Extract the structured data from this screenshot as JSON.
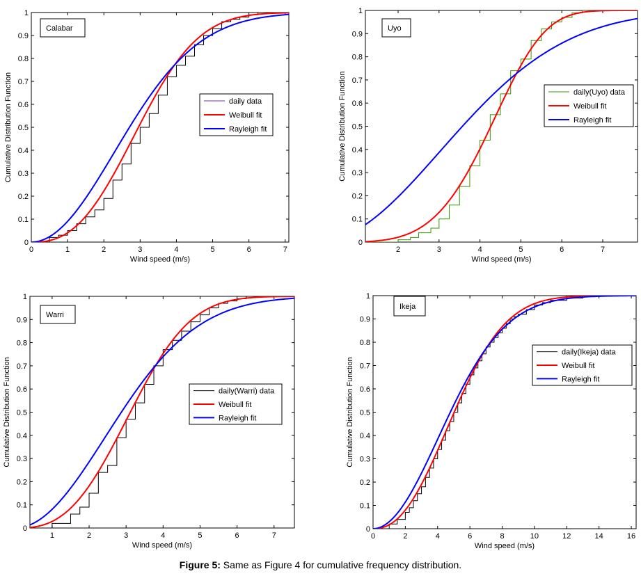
{
  "caption": {
    "label": "Figure 5:",
    "text": " Same as Figure 4 for cumulative frequency distribution."
  },
  "colors": {
    "weibull": "#ff0000",
    "rayleigh": "#0000ff",
    "axes": "#000000",
    "background": "#ffffff"
  },
  "chart_data": [
    {
      "type": "line",
      "title": "Calabar",
      "xlabel": "Wind speed (m/s)",
      "ylabel": "Cumulative Distribution Function",
      "xlim": [
        0,
        7.1
      ],
      "ylim": [
        0,
        1
      ],
      "xticks": [
        0,
        1,
        2,
        3,
        4,
        5,
        6,
        7
      ],
      "yticks": [
        0,
        0.1,
        0.2,
        0.3,
        0.4,
        0.5,
        0.6,
        0.7,
        0.8,
        0.9,
        1
      ],
      "grid": false,
      "legend_position": "center-right",
      "series": [
        {
          "name": "daily data",
          "kind": "step",
          "color": "#000000",
          "legend_color": "#7030a0",
          "x": [
            0,
            0.5,
            0.75,
            1.0,
            1.25,
            1.5,
            1.75,
            2.0,
            2.25,
            2.5,
            2.75,
            3.0,
            3.25,
            3.5,
            3.75,
            4.0,
            4.25,
            4.5,
            4.75,
            5.0,
            5.25,
            5.5,
            5.75,
            6.0,
            6.25,
            6.5,
            7.0
          ],
          "y": [
            0,
            0.02,
            0.03,
            0.05,
            0.08,
            0.11,
            0.14,
            0.19,
            0.27,
            0.34,
            0.43,
            0.5,
            0.56,
            0.64,
            0.72,
            0.77,
            0.81,
            0.86,
            0.9,
            0.93,
            0.96,
            0.97,
            0.98,
            0.99,
            1,
            1,
            1
          ]
        },
        {
          "name": "Weibull fit",
          "kind": "weibull",
          "k": 2.6,
          "c": 3.4,
          "color": "#ff0000"
        },
        {
          "name": "Rayleigh fit",
          "kind": "weibull",
          "k": 2.0,
          "c": 3.25,
          "color": "#0000ff"
        }
      ]
    },
    {
      "type": "line",
      "title": "Uyo",
      "xlabel": "Wind speed (m/s)",
      "ylabel": "Cumulative Distribution Function",
      "xlim": [
        1.2,
        7.85
      ],
      "ylim": [
        0,
        1
      ],
      "xticks": [
        2,
        3,
        4,
        5,
        6,
        7
      ],
      "yticks": [
        0,
        0.1,
        0.2,
        0.3,
        0.4,
        0.5,
        0.6,
        0.7,
        0.8,
        0.9,
        1
      ],
      "grid": false,
      "legend_position": "center-right",
      "series": [
        {
          "name": "daily(Uyo) data",
          "kind": "step",
          "color": "#339900",
          "x": [
            1.2,
            2.0,
            2.3,
            2.5,
            2.8,
            3.0,
            3.25,
            3.5,
            3.75,
            4.0,
            4.25,
            4.5,
            4.75,
            5.0,
            5.25,
            5.5,
            5.75,
            6.0,
            6.25,
            6.5,
            7.0
          ],
          "y": [
            0,
            0.01,
            0.02,
            0.04,
            0.06,
            0.1,
            0.16,
            0.24,
            0.33,
            0.44,
            0.55,
            0.64,
            0.74,
            0.79,
            0.87,
            0.92,
            0.95,
            0.97,
            0.99,
            1,
            1
          ]
        },
        {
          "name": "Weibull fit",
          "kind": "weibull",
          "k": 4.6,
          "c": 4.62,
          "color": "#ff0000"
        },
        {
          "name": "Rayleigh fit",
          "kind": "weibull",
          "k": 2.0,
          "c": 4.29,
          "color": "#0000ff"
        }
      ]
    },
    {
      "type": "line",
      "title": "Warri",
      "xlabel": "Wind speed (m/s)",
      "ylabel": "Cumulative Distribution Function",
      "xlim": [
        0.4,
        7.55
      ],
      "ylim": [
        0,
        1
      ],
      "xticks": [
        1,
        2,
        3,
        4,
        5,
        6,
        7
      ],
      "yticks": [
        0,
        0.1,
        0.2,
        0.3,
        0.4,
        0.5,
        0.6,
        0.7,
        0.8,
        0.9,
        1
      ],
      "grid": false,
      "legend_position": "center-right",
      "series": [
        {
          "name": "daily(Warri) data",
          "kind": "step",
          "color": "#000000",
          "x": [
            0.4,
            1.0,
            1.5,
            1.75,
            2.0,
            2.25,
            2.5,
            2.75,
            3.0,
            3.25,
            3.5,
            3.75,
            4.0,
            4.25,
            4.5,
            4.75,
            5.0,
            5.25,
            5.5,
            5.75,
            6.0,
            6.25,
            6.5,
            7.0
          ],
          "y": [
            0,
            0.02,
            0.06,
            0.09,
            0.15,
            0.24,
            0.27,
            0.39,
            0.47,
            0.54,
            0.62,
            0.7,
            0.77,
            0.81,
            0.85,
            0.89,
            0.92,
            0.95,
            0.97,
            0.98,
            0.99,
            1,
            1,
            1
          ]
        },
        {
          "name": "Weibull fit",
          "kind": "weibull",
          "k": 2.8,
          "c": 3.55,
          "color": "#ff0000"
        },
        {
          "name": "Rayleigh fit",
          "kind": "weibull",
          "k": 2.0,
          "c": 3.45,
          "color": "#0000ff"
        }
      ]
    },
    {
      "type": "line",
      "title": "Ikeja",
      "xlabel": "Wind speed (m/s)",
      "ylabel": "Cumulative Distribution Function",
      "xlim": [
        0,
        16.3
      ],
      "ylim": [
        0,
        1
      ],
      "xticks": [
        0,
        2,
        4,
        6,
        8,
        10,
        12,
        14,
        16
      ],
      "yticks": [
        0,
        0.1,
        0.2,
        0.3,
        0.4,
        0.5,
        0.6,
        0.7,
        0.8,
        0.9,
        1
      ],
      "grid": false,
      "legend_position": "center-right",
      "series": [
        {
          "name": "daily(Ikeja) data",
          "kind": "step",
          "color": "#000000",
          "x": [
            0,
            1.0,
            1.5,
            2.0,
            2.25,
            2.5,
            2.75,
            3.0,
            3.25,
            3.5,
            3.75,
            4.0,
            4.25,
            4.5,
            4.75,
            5.0,
            5.25,
            5.5,
            5.75,
            6.0,
            6.25,
            6.5,
            6.75,
            7.0,
            7.25,
            7.5,
            7.75,
            8.0,
            8.25,
            8.5,
            8.75,
            9.0,
            9.5,
            10.0,
            10.5,
            11.0,
            12.0,
            13.0,
            14.0
          ],
          "y": [
            0,
            0.02,
            0.04,
            0.07,
            0.09,
            0.12,
            0.15,
            0.18,
            0.22,
            0.26,
            0.3,
            0.34,
            0.38,
            0.42,
            0.46,
            0.5,
            0.54,
            0.58,
            0.62,
            0.66,
            0.69,
            0.72,
            0.75,
            0.78,
            0.8,
            0.82,
            0.84,
            0.86,
            0.88,
            0.9,
            0.91,
            0.92,
            0.94,
            0.96,
            0.97,
            0.98,
            0.99,
            1,
            1
          ]
        },
        {
          "name": "Weibull fit",
          "kind": "weibull",
          "k": 2.3,
          "c": 5.9,
          "color": "#ff0000"
        },
        {
          "name": "Rayleigh fit",
          "kind": "weibull",
          "k": 2.0,
          "c": 5.75,
          "color": "#0000ff"
        }
      ]
    }
  ]
}
